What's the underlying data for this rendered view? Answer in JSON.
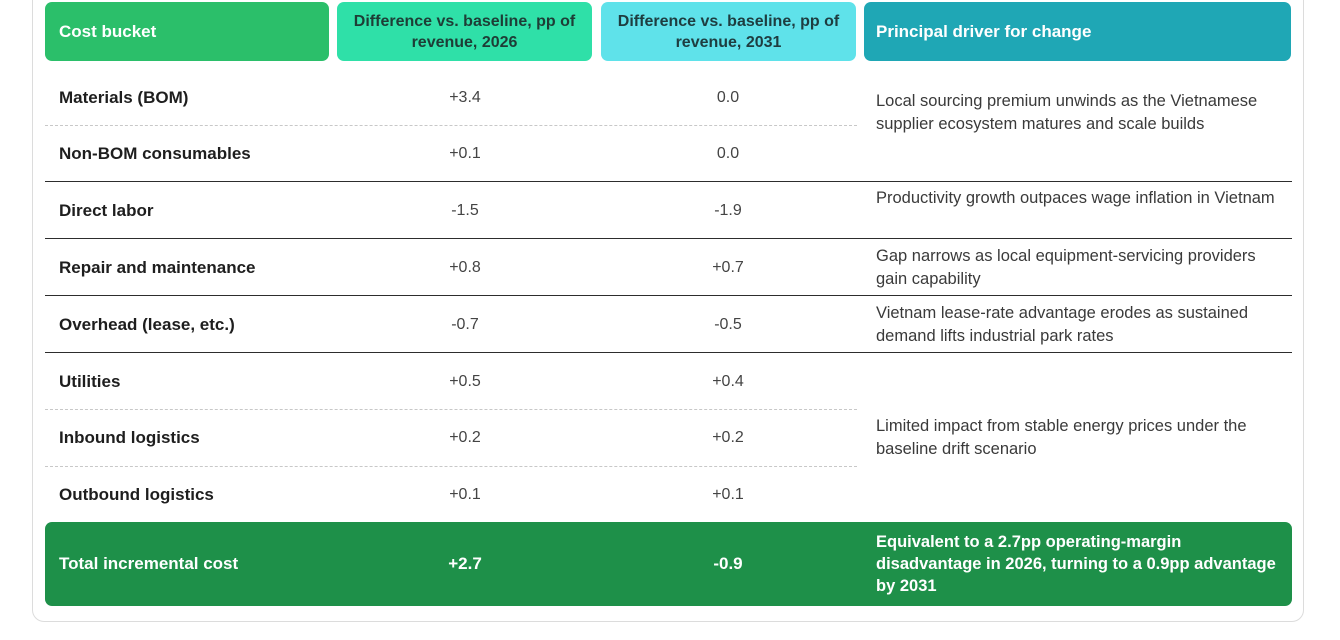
{
  "table": {
    "headers": {
      "cost_bucket": "Cost bucket",
      "diff_2026": "Difference vs. baseline, pp of revenue, 2026",
      "diff_2031": "Difference vs. baseline, pp of revenue, 2031",
      "driver": "Principal driver for change"
    },
    "rows": [
      {
        "label": "Materials (BOM)",
        "v2026": "+3.4",
        "v2031": "0.0"
      },
      {
        "label": "Non-BOM consumables",
        "v2026": "+0.1",
        "v2031": "0.0"
      },
      {
        "label": "Direct labor",
        "v2026": "-1.5",
        "v2031": "-1.9"
      },
      {
        "label": "Repair and maintenance",
        "v2026": "+0.8",
        "v2031": "+0.7"
      },
      {
        "label": "Overhead (lease, etc.)",
        "v2026": "-0.7",
        "v2031": "-0.5"
      },
      {
        "label": "Utilities",
        "v2026": "+0.5",
        "v2031": "+0.4"
      },
      {
        "label": "Inbound logistics",
        "v2026": "+0.2",
        "v2031": "+0.2"
      },
      {
        "label": "Outbound logistics",
        "v2026": "+0.1",
        "v2031": "+0.1"
      }
    ],
    "drivers": [
      "Local sourcing premium unwinds as the Vietnamese supplier ecosystem matures and scale builds",
      "Productivity growth outpaces wage inflation in Vietnam",
      "Gap narrows as local equipment-servicing providers gain capability",
      "Vietnam lease-rate advantage erodes as sustained demand lifts industrial park rates",
      "Limited impact from stable energy prices under the baseline drift scenario"
    ],
    "total": {
      "label": "Total incremental cost",
      "v2026": "+2.7",
      "v2031": "-0.9",
      "driver": "Equivalent to a 2.7pp operating-margin disadvantage in 2026, turning to a 0.9pp advantage by 2031"
    }
  },
  "colors": {
    "header_cost_bucket": "#2bbf6a",
    "header_2026": "#2fe0a8",
    "header_2031": "#5fe2ea",
    "header_driver": "#1fa7b5",
    "total_row": "#1e9049"
  }
}
